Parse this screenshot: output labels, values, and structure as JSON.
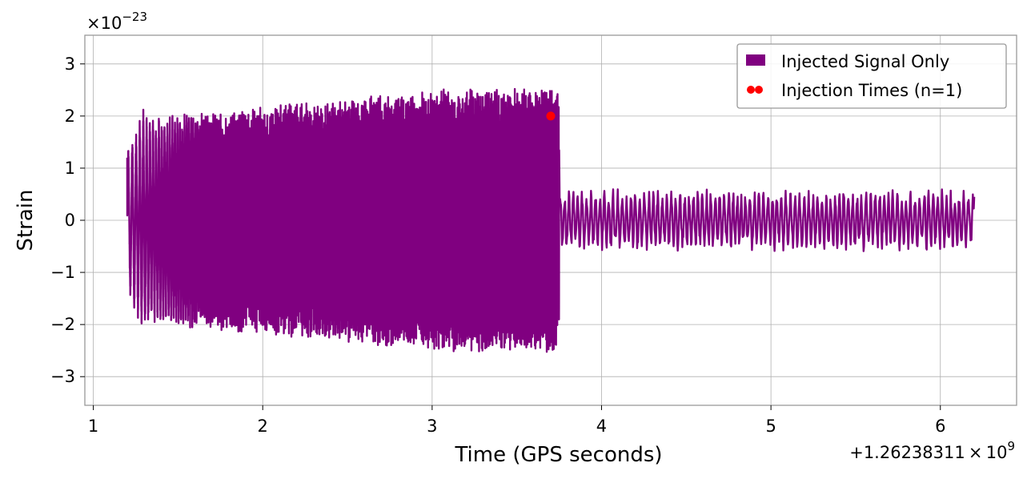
{
  "chart_data": {
    "type": "line",
    "title": "",
    "xlabel": "Time (GPS seconds)",
    "ylabel": "Strain",
    "x_offset_label": "+1.26238311 × 10",
    "x_offset_exponent": "9",
    "y_multiplier_label": "×10",
    "y_multiplier_exponent": "−23",
    "xlim": [
      0.95,
      6.45
    ],
    "ylim": [
      -3.55,
      3.55
    ],
    "x_ticks": [
      1,
      2,
      3,
      4,
      5,
      6
    ],
    "x_tick_labels": [
      "1",
      "2",
      "3",
      "4",
      "5",
      "6"
    ],
    "y_ticks": [
      3,
      2,
      1,
      0,
      -1,
      -2,
      -3
    ],
    "y_tick_labels": [
      "3",
      "2",
      "1",
      "0",
      "−1",
      "−2",
      "−3"
    ],
    "grid": true,
    "legend_position": "top-right",
    "series": [
      {
        "name": "Injected Signal Only",
        "color": "#800080",
        "kind": "line",
        "x_start": 1.2,
        "x_end": 6.2,
        "signal_end": 3.75,
        "envelope_start": 1.3,
        "envelope_end": 3.1,
        "noise_amplitude": 0.4,
        "start_value": 1.2,
        "end_value": 0.45
      },
      {
        "name": "Injection Times (n=1)",
        "color": "#ff0000",
        "kind": "scatter",
        "points": [
          {
            "x": 3.7,
            "y": 2.0
          }
        ]
      }
    ]
  },
  "legend": {
    "items": [
      {
        "label": "Injected Signal Only"
      },
      {
        "label": "Injection Times (n=1)"
      }
    ]
  }
}
